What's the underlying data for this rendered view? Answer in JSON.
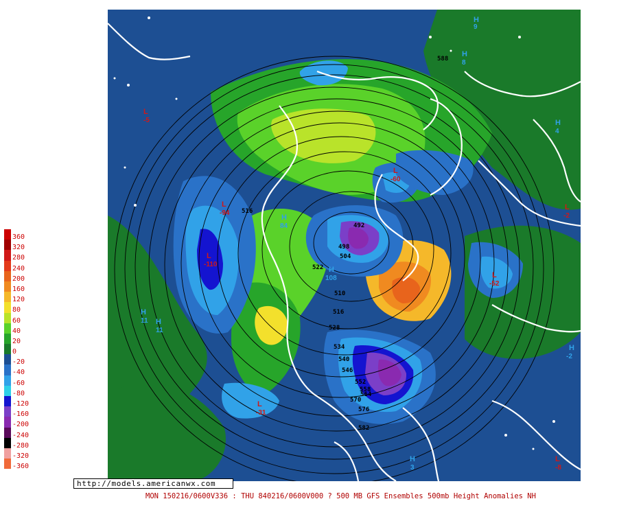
{
  "legend": [
    {
      "value": "360",
      "color": "#cc0000"
    },
    {
      "value": "320",
      "color": "#a00000"
    },
    {
      "value": "280",
      "color": "#d01818"
    },
    {
      "value": "240",
      "color": "#e43a1a"
    },
    {
      "value": "200",
      "color": "#e8641c"
    },
    {
      "value": "160",
      "color": "#f08a20"
    },
    {
      "value": "120",
      "color": "#f5b82a"
    },
    {
      "value": "80",
      "color": "#f3e02c"
    },
    {
      "value": "60",
      "color": "#b9e32a"
    },
    {
      "value": "40",
      "color": "#5ad22a"
    },
    {
      "value": "20",
      "color": "#27a52a"
    },
    {
      "value": "0",
      "color": "#1a7a2a"
    },
    {
      "value": "-20",
      "color": "#1d4f93"
    },
    {
      "value": "-40",
      "color": "#2a72c8"
    },
    {
      "value": "-60",
      "color": "#31a2e8"
    },
    {
      "value": "-80",
      "color": "#2fd0e8"
    },
    {
      "value": "-120",
      "color": "#1414d0"
    },
    {
      "value": "-160",
      "color": "#7b3fc8"
    },
    {
      "value": "-200",
      "color": "#8a2ab0"
    },
    {
      "value": "-240",
      "color": "#5a0a5a"
    },
    {
      "value": "-280",
      "color": "#000000"
    },
    {
      "value": "-320",
      "color": "#f0a0a0"
    },
    {
      "value": "-360",
      "color": "#f06a3a"
    }
  ],
  "url": "http://models.americanwx.com",
  "caption": "MON 150216/0600V336 : THU 840216/0600V000  ? 500 MB GFS Ensembles 500mb Height Anomalies NH",
  "contour_labels": [
    "588",
    "516",
    "492",
    "498",
    "504",
    "522",
    "510",
    "516",
    "528",
    "534",
    "540",
    "546",
    "552",
    "558",
    "564",
    "570",
    "576",
    "582"
  ],
  "centers": [
    {
      "type": "H",
      "value": "9",
      "color": "#31a2e8"
    },
    {
      "type": "H",
      "value": "8",
      "color": "#31a2e8"
    },
    {
      "type": "H",
      "value": "4",
      "color": "#31a2e8"
    },
    {
      "type": "H",
      "value": "11",
      "color": "#31a2e8"
    },
    {
      "type": "H",
      "value": "11",
      "color": "#31a2e8"
    },
    {
      "type": "H",
      "value": "-2",
      "color": "#31a2e8"
    },
    {
      "type": "H",
      "value": "84",
      "color": "#31a2e8"
    },
    {
      "type": "H",
      "value": "108",
      "color": "#31a2e8"
    },
    {
      "type": "H",
      "value": "3",
      "color": "#31a2e8"
    },
    {
      "type": "L",
      "value": "-94",
      "color": "#d01818"
    },
    {
      "type": "L",
      "value": "-110",
      "color": "#d01818"
    },
    {
      "type": "L",
      "value": "-60",
      "color": "#d01818"
    },
    {
      "type": "L",
      "value": "-31",
      "color": "#d01818"
    },
    {
      "type": "L",
      "value": "-52",
      "color": "#d01818"
    },
    {
      "type": "L",
      "value": "-8",
      "color": "#d01818"
    },
    {
      "type": "L",
      "value": "-2",
      "color": "#d01818"
    },
    {
      "type": "L",
      "value": "-5",
      "color": "#d01818"
    }
  ]
}
